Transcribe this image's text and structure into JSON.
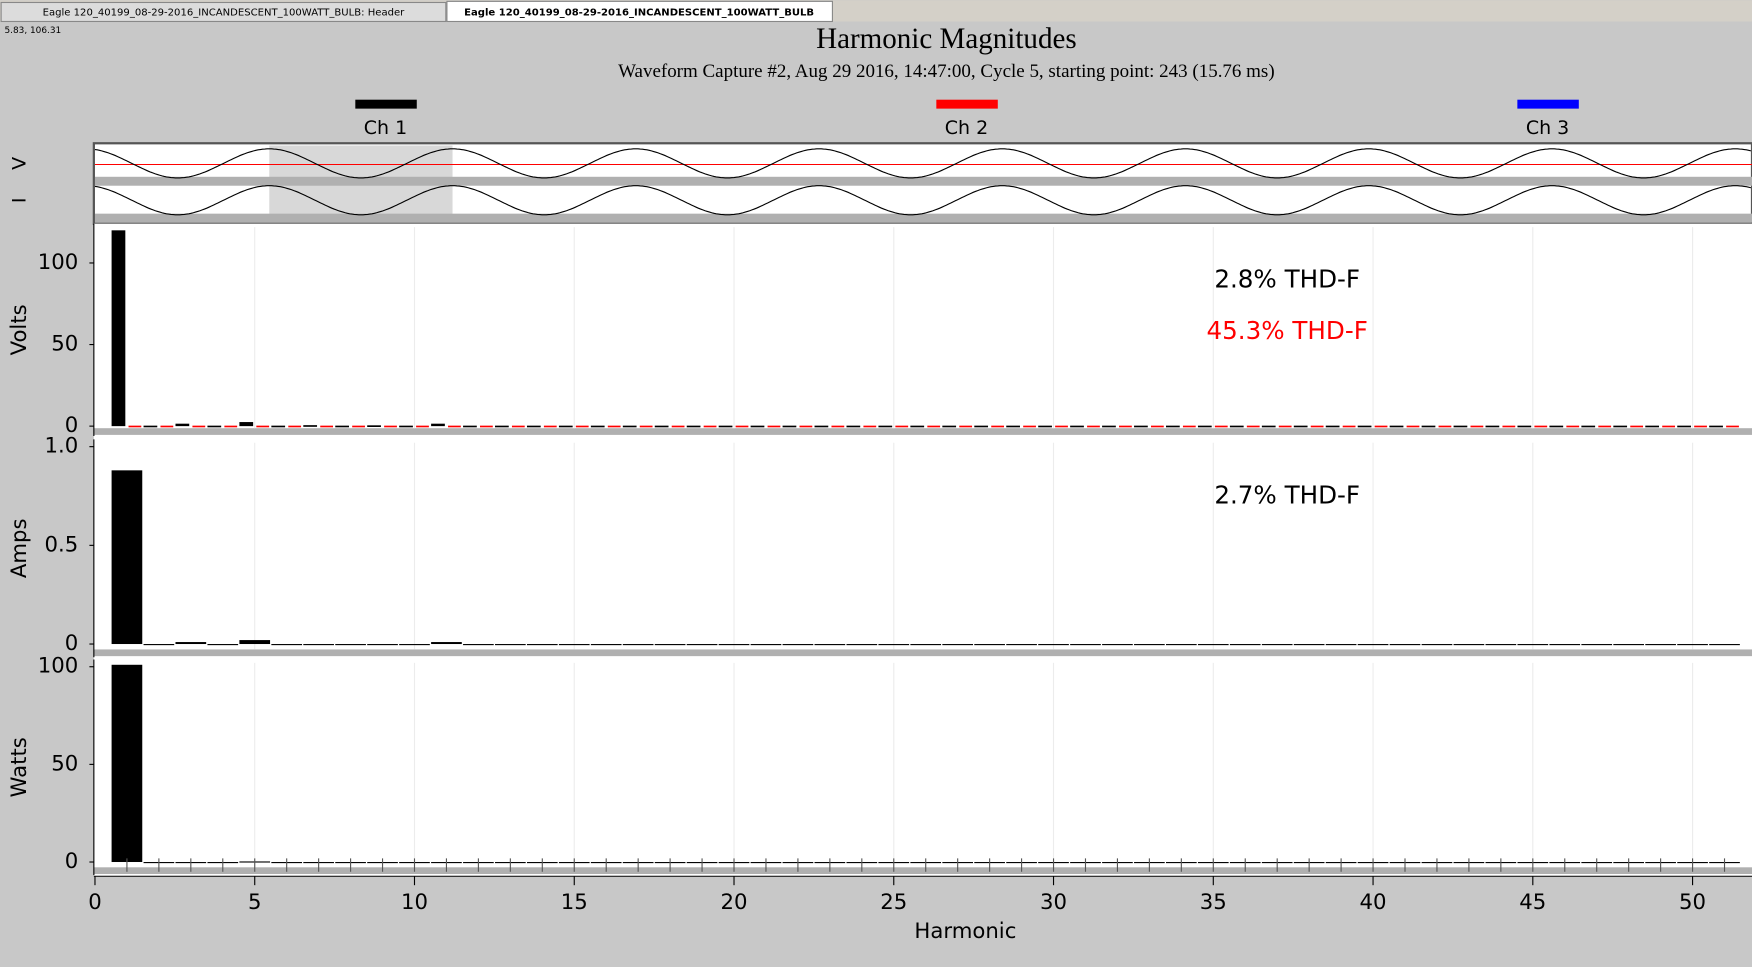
{
  "tabs": [
    "Eagle 120_40199_08-29-2016_INCANDESCENT_100WATT_BULB: Header",
    "Eagle 120_40199_08-29-2016_INCANDESCENT_100WATT_BULB"
  ],
  "cursor_readout": "5.83, 106.31",
  "title": "Harmonic Magnitudes",
  "subtitle": "Waveform Capture #2, Aug 29 2016, 14:47:00, Cycle 5,  starting point: 243  (15.76 ms)",
  "legend": [
    {
      "name": "Ch 1",
      "color": "#000000"
    },
    {
      "name": "Ch 2",
      "color": "#ff0000"
    },
    {
      "name": "Ch 3",
      "color": "#0000ff"
    }
  ],
  "waveform_labels": [
    "V",
    "I"
  ],
  "chart_data": [
    {
      "type": "bar",
      "ylabel": "Volts",
      "ylim": [
        -4,
        122
      ],
      "yticks": [
        0,
        50,
        100
      ],
      "xlim": [
        0,
        51.86
      ],
      "x": [
        1,
        2,
        3,
        4,
        5,
        6,
        7,
        8,
        9,
        10,
        11,
        12,
        13,
        14,
        15,
        16,
        17,
        18,
        19,
        20,
        21,
        22,
        23,
        24,
        25,
        26,
        27,
        28,
        29,
        30,
        31,
        32,
        33,
        34,
        35,
        36,
        37,
        38,
        39,
        40,
        41,
        42,
        43,
        44,
        45,
        46,
        47,
        48,
        49,
        50,
        51
      ],
      "series": [
        {
          "name": "Ch 1",
          "color": "#000000",
          "values": [
            120,
            0.3,
            1.5,
            0.3,
            2.5,
            0.3,
            0.6,
            0.3,
            0.5,
            0.3,
            1.5,
            0.3,
            0.3,
            0.3,
            0.3,
            0.3,
            0.3,
            0.3,
            0.3,
            0.3,
            0.3,
            0.3,
            0.3,
            0.3,
            0.3,
            0.3,
            0.3,
            0.3,
            0.3,
            0.3,
            0.3,
            0.3,
            0.3,
            0.3,
            0.3,
            0.3,
            0.3,
            0.3,
            0.3,
            0.3,
            0.3,
            0.3,
            0.3,
            0.3,
            0.3,
            0.3,
            0.3,
            0.3,
            0.3,
            0.3,
            0.3
          ]
        },
        {
          "name": "Ch 2",
          "color": "#ff0000",
          "values": [
            0.3,
            0.3,
            0.3,
            0.3,
            0.3,
            0.3,
            0.3,
            0.3,
            0.3,
            0.3,
            0.3,
            0.3,
            0.3,
            0.3,
            0.3,
            0.3,
            0.3,
            0.3,
            0.3,
            0.3,
            0.3,
            0.3,
            0.3,
            0.3,
            0.3,
            0.3,
            0.3,
            0.3,
            0.3,
            0.3,
            0.3,
            0.3,
            0.3,
            0.3,
            0.3,
            0.3,
            0.3,
            0.3,
            0.3,
            0.3,
            0.3,
            0.3,
            0.3,
            0.3,
            0.3,
            0.3,
            0.3,
            0.3,
            0.3,
            0.3,
            0.3
          ]
        }
      ],
      "annotations": [
        {
          "text": "2.8% THD-F",
          "color": "#000000"
        },
        {
          "text": "45.3% THD-F",
          "color": "#ff0000"
        }
      ]
    },
    {
      "type": "bar",
      "ylabel": "Amps",
      "ylim": [
        -0.05,
        1.02
      ],
      "yticks": [
        0,
        0.5,
        {
          "value": 1,
          "label": "1.0"
        }
      ],
      "xlim": [
        0,
        51.86
      ],
      "x": [
        1,
        2,
        3,
        4,
        5,
        6,
        7,
        8,
        9,
        10,
        11,
        12,
        13,
        14,
        15,
        16,
        17,
        18,
        19,
        20,
        21,
        22,
        23,
        24,
        25,
        26,
        27,
        28,
        29,
        30,
        31,
        32,
        33,
        34,
        35,
        36,
        37,
        38,
        39,
        40,
        41,
        42,
        43,
        44,
        45,
        46,
        47,
        48,
        49,
        50,
        51
      ],
      "series": [
        {
          "name": "Ch 1",
          "color": "#000000",
          "values": [
            0.88,
            0,
            0.01,
            0,
            0.02,
            0,
            0,
            0,
            0,
            0,
            0.01,
            0,
            0,
            0,
            0,
            0,
            0,
            0,
            0,
            0,
            0,
            0,
            0,
            0,
            0,
            0,
            0,
            0,
            0,
            0,
            0,
            0,
            0,
            0,
            0,
            0,
            0,
            0,
            0,
            0,
            0,
            0,
            0,
            0,
            0,
            0,
            0,
            0,
            0,
            0,
            0
          ]
        }
      ],
      "annotations": [
        {
          "text": "2.7% THD-F",
          "color": "#000000"
        }
      ]
    },
    {
      "type": "bar",
      "ylabel": "Watts",
      "xlabel": "Harmonic",
      "ylim": [
        -5,
        102
      ],
      "yticks": [
        0,
        50,
        100
      ],
      "xlim": [
        0,
        51.86
      ],
      "xticks": [
        0,
        5,
        10,
        15,
        20,
        25,
        30,
        35,
        40,
        45,
        50
      ],
      "x": [
        1,
        2,
        3,
        4,
        5,
        6,
        7,
        8,
        9,
        10,
        11,
        12,
        13,
        14,
        15,
        16,
        17,
        18,
        19,
        20,
        21,
        22,
        23,
        24,
        25,
        26,
        27,
        28,
        29,
        30,
        31,
        32,
        33,
        34,
        35,
        36,
        37,
        38,
        39,
        40,
        41,
        42,
        43,
        44,
        45,
        46,
        47,
        48,
        49,
        50,
        51
      ],
      "series": [
        {
          "name": "Ch 1",
          "color": "#000000",
          "values": [
            101,
            0,
            0,
            0,
            0.3,
            0,
            0,
            0,
            0,
            0,
            0,
            0,
            0,
            0,
            0,
            0,
            0,
            0,
            0,
            0,
            0,
            0,
            0,
            0,
            0,
            0,
            0,
            0,
            0,
            0,
            0,
            0,
            0,
            0,
            0,
            0,
            0,
            0,
            0,
            0,
            0,
            0,
            0,
            0,
            0,
            0,
            0,
            0,
            0,
            0,
            0
          ]
        }
      ]
    }
  ]
}
